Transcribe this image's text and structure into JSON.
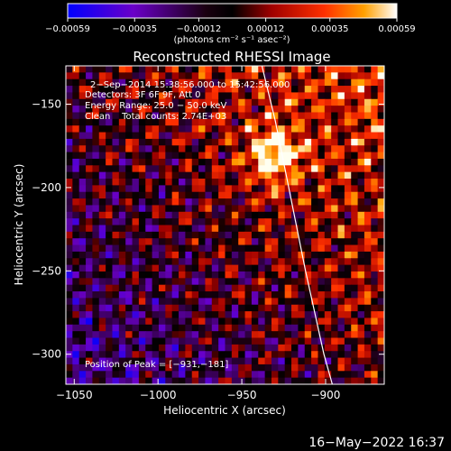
{
  "chart_data": {
    "type": "heatmap",
    "title": "Reconstructed RHESSI Image",
    "xlabel": "Heliocentric X (arcsec)",
    "ylabel": "Heliocentric Y (arcsec)",
    "xlim": [
      -1055,
      -865
    ],
    "ylim": [
      -318,
      -127
    ],
    "xticks": [
      -1050,
      -1000,
      -950,
      -900
    ],
    "yticks": [
      -150,
      -200,
      -250,
      -300
    ],
    "xtick_labels": [
      "−1050",
      "−1000",
      "−950",
      "−900"
    ],
    "ytick_labels": [
      "−150",
      "−200",
      "−250",
      "−300"
    ],
    "colorbar": {
      "range": [
        -0.00059,
        0.00059
      ],
      "ticks": [
        -0.00059,
        -0.00035,
        -0.00012,
        0.00012,
        0.00035,
        0.00059
      ],
      "tick_labels": [
        "−0.00059",
        "−0.00035",
        "−0.00012",
        "0.00012",
        "0.00035",
        "0.00059"
      ],
      "unit_label": "(photons cm⁻² s⁻¹ asec⁻²)",
      "colors": [
        "#0000ff",
        "#8a00a0",
        "#000000",
        "#a00000",
        "#ff3000",
        "#ffa000",
        "#ffffff"
      ]
    },
    "info_lines": [
      "2−Sep−2014 15:38:56.000 to 15:42:56.000",
      "Detectors: 3F 6F 9F, Att 0",
      "Energy Range: 25.0 − 50.0 keV",
      "Clean    Total counts: 2.74E+03"
    ],
    "peak_label": "Position of Peak = [−931,−181]",
    "peak": [
      -931,
      -181
    ],
    "limb_curve": [
      [
        -938,
        -127
      ],
      [
        -930,
        -160
      ],
      [
        -922,
        -200
      ],
      [
        -912,
        -250
      ],
      [
        -901,
        -300
      ],
      [
        -896,
        -318
      ]
    ]
  },
  "footer": {
    "timestamp": "16−May−2022 16:37"
  }
}
